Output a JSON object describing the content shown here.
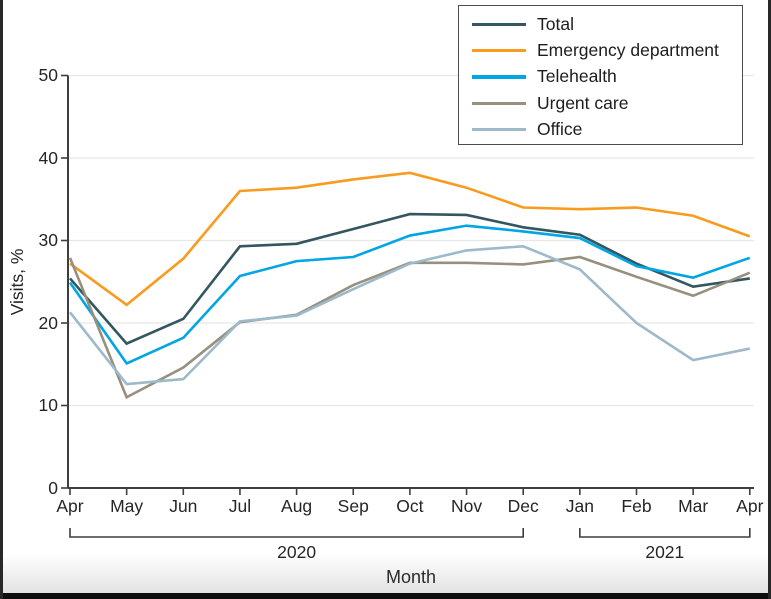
{
  "figure": {
    "y_axis_label": "Visits, %",
    "x_axis_label": "Month",
    "year_groups": [
      {
        "label": "2020",
        "start_month_index": 0,
        "end_month_index": 8
      },
      {
        "label": "2021",
        "start_month_index": 9,
        "end_month_index": 12
      }
    ]
  },
  "style": {
    "grid_color": "#e7e7e7",
    "axis_color": "#3e3e3e",
    "frame_color": "#282828",
    "legend_border_color": "#4d4d4d",
    "text_color": "#262626"
  },
  "chart_data": {
    "type": "line",
    "x": [
      "Apr",
      "May",
      "Jun",
      "Jul",
      "Aug",
      "Sep",
      "Oct",
      "Nov",
      "Dec",
      "Jan",
      "Feb",
      "Mar",
      "Apr"
    ],
    "xlabel": "Month",
    "ylabel": "Visits, %",
    "ylim": [
      0,
      50
    ],
    "yticks": [
      0,
      10,
      20,
      30,
      40,
      50
    ],
    "grid": true,
    "legend_position": "top-right",
    "series": [
      {
        "name": "Total",
        "color": "#33565f",
        "values": [
          25.4,
          17.5,
          20.5,
          29.3,
          29.6,
          31.4,
          33.2,
          33.1,
          31.6,
          30.7,
          27.2,
          24.4,
          25.4
        ]
      },
      {
        "name": "Emergency department",
        "color": "#f99b1e",
        "values": [
          27.2,
          22.2,
          27.8,
          36.0,
          36.4,
          37.4,
          38.2,
          36.4,
          34.0,
          33.8,
          34.0,
          33.0,
          30.5
        ]
      },
      {
        "name": "Telehealth",
        "color": "#00a5e3",
        "values": [
          24.9,
          15.1,
          18.2,
          25.7,
          27.5,
          28.0,
          30.6,
          31.8,
          31.1,
          30.3,
          26.9,
          25.5,
          27.9
        ]
      },
      {
        "name": "Urgent care",
        "color": "#98907e",
        "values": [
          27.9,
          11.0,
          14.6,
          20.1,
          21.0,
          24.6,
          27.3,
          27.3,
          27.1,
          28.0,
          25.6,
          23.3,
          26.1
        ]
      },
      {
        "name": "Office",
        "color": "#9db9ca",
        "values": [
          21.3,
          12.6,
          13.2,
          20.2,
          20.9,
          24.1,
          27.2,
          28.8,
          29.3,
          26.5,
          20.0,
          15.5,
          16.9
        ]
      }
    ]
  }
}
